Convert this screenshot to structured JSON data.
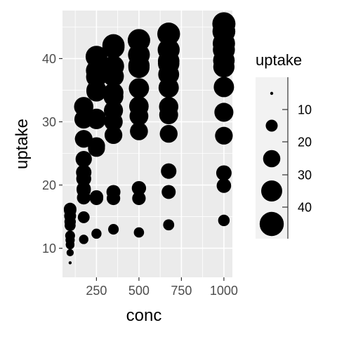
{
  "chart_data": {
    "type": "scatter",
    "xlabel": "conc",
    "ylabel": "uptake",
    "xlim": [
      50,
      1050
    ],
    "ylim": [
      5.4,
      47.6
    ],
    "x_ticks": [
      250,
      500,
      750,
      1000
    ],
    "x_tick_labels": [
      "250",
      "500",
      "750",
      "1000"
    ],
    "y_ticks": [
      10,
      20,
      30,
      40
    ],
    "y_tick_labels": [
      "10",
      "20",
      "30",
      "40"
    ],
    "grid": true,
    "size_variable": "uptake",
    "legend": {
      "title": "uptake",
      "placement": "right",
      "values": [
        10,
        20,
        30,
        40
      ],
      "labels": [
        "10",
        "20",
        "30",
        "40"
      ]
    },
    "x": [
      95,
      175,
      250,
      350,
      500,
      675,
      1000,
      95,
      175,
      250,
      350,
      500,
      675,
      1000,
      95,
      175,
      250,
      350,
      500,
      675,
      1000,
      95,
      175,
      250,
      350,
      500,
      675,
      1000,
      95,
      175,
      250,
      350,
      500,
      675,
      1000,
      95,
      175,
      250,
      350,
      500,
      675,
      1000,
      95,
      175,
      250,
      350,
      500,
      675,
      1000,
      95,
      175,
      250,
      350,
      500,
      675,
      1000,
      95,
      175,
      250,
      350,
      500,
      675,
      1000,
      95,
      175,
      250,
      350,
      500,
      675,
      1000,
      95,
      175,
      250,
      350,
      500,
      675,
      1000,
      95,
      175,
      250,
      350,
      500,
      675,
      1000
    ],
    "y": [
      16.0,
      30.4,
      34.8,
      37.2,
      35.3,
      39.2,
      39.7,
      13.6,
      27.3,
      37.1,
      41.8,
      40.6,
      41.4,
      44.3,
      16.2,
      32.4,
      40.3,
      42.1,
      42.9,
      43.9,
      45.5,
      14.2,
      24.1,
      30.3,
      34.6,
      32.5,
      35.4,
      38.7,
      9.3,
      27.3,
      35.0,
      38.8,
      38.6,
      37.5,
      42.4,
      15.1,
      21.0,
      38.1,
      34.0,
      38.9,
      39.6,
      41.4,
      10.6,
      19.2,
      26.2,
      30.0,
      30.9,
      32.4,
      35.5,
      12.0,
      22.0,
      30.6,
      31.8,
      32.4,
      31.1,
      31.5,
      11.3,
      19.4,
      25.8,
      27.9,
      28.5,
      28.1,
      27.8,
      10.5,
      14.9,
      18.1,
      18.9,
      19.5,
      22.2,
      21.9,
      7.7,
      11.4,
      12.3,
      13.0,
      12.5,
      13.7,
      14.4,
      10.6,
      18.0,
      17.9,
      17.9,
      17.9,
      18.9,
      19.9
    ]
  }
}
